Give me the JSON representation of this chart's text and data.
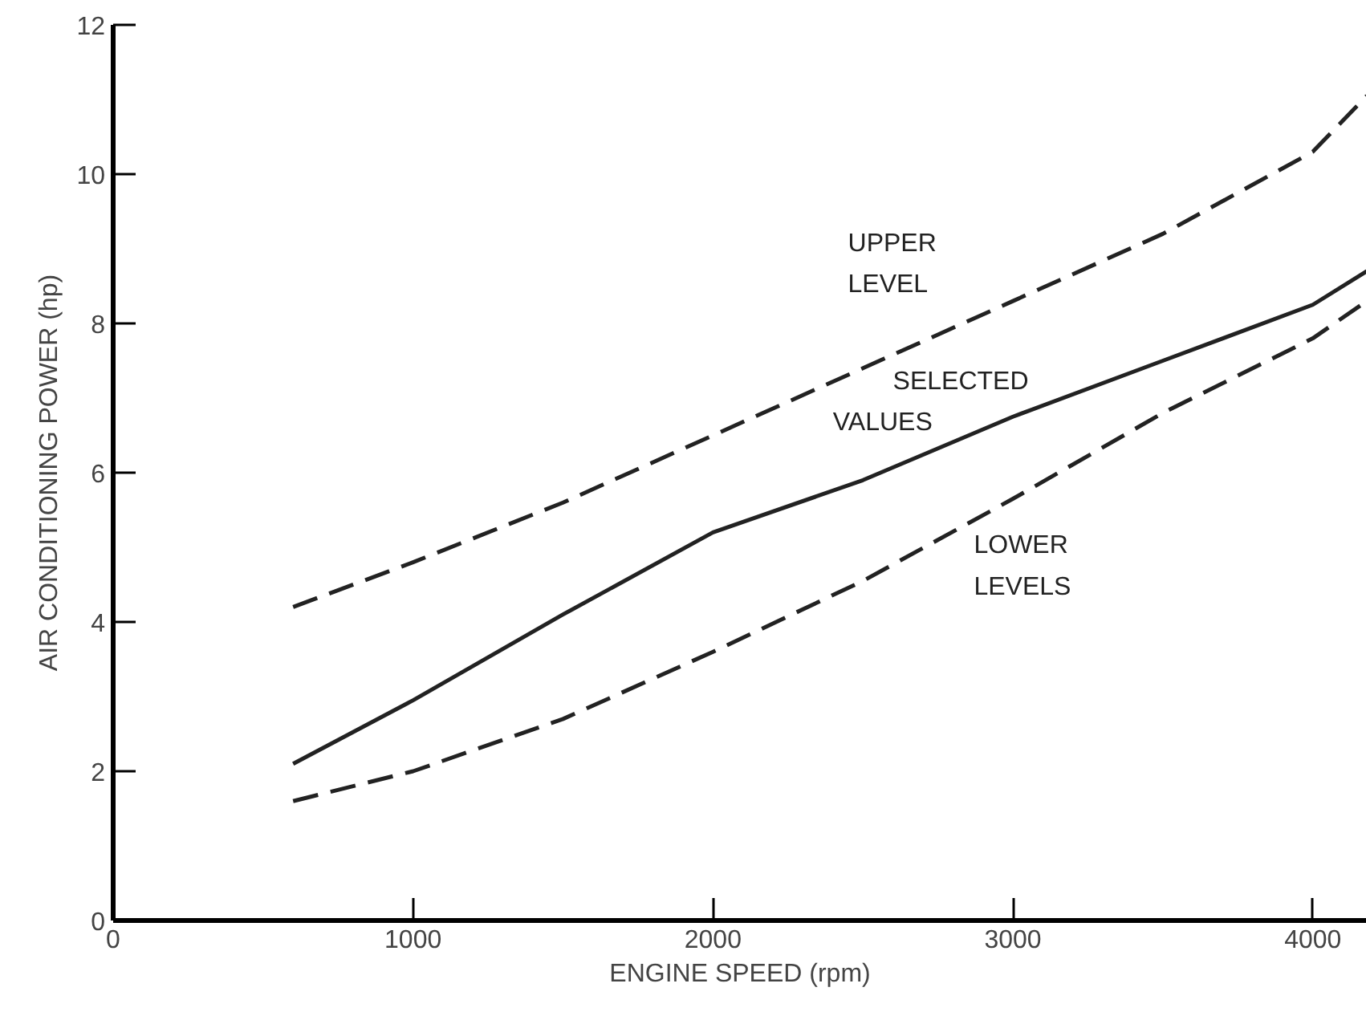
{
  "chart_data": {
    "type": "line",
    "xlabel": "ENGINE SPEED (rpm)",
    "ylabel": "AIR CONDITIONING POWER (hp)",
    "xlim": [
      0,
      4180
    ],
    "ylim": [
      0,
      12
    ],
    "xticks": [
      0,
      1000,
      2000,
      3000,
      4000
    ],
    "yticks": [
      0,
      2,
      4,
      6,
      8,
      10,
      12
    ],
    "marker": "none",
    "x": [
      600,
      1000,
      1500,
      2000,
      2500,
      3000,
      3500,
      4000,
      4180
    ],
    "series": [
      {
        "name": "UPPER LEVEL",
        "color": "#222222",
        "line_style": "dashed",
        "values": [
          4.2,
          4.8,
          5.6,
          6.5,
          7.4,
          8.3,
          9.2,
          10.3,
          11.05
        ]
      },
      {
        "name": "SELECTED VALUES",
        "color": "#222222",
        "line_style": "solid",
        "values": [
          2.1,
          2.95,
          4.1,
          5.2,
          5.9,
          6.75,
          7.5,
          8.25,
          8.7
        ]
      },
      {
        "name": "LOWER LEVELS",
        "color": "#222222",
        "line_style": "dashed",
        "values": [
          1.6,
          2.0,
          2.7,
          3.6,
          4.55,
          5.65,
          6.8,
          7.8,
          8.3
        ]
      }
    ]
  }
}
